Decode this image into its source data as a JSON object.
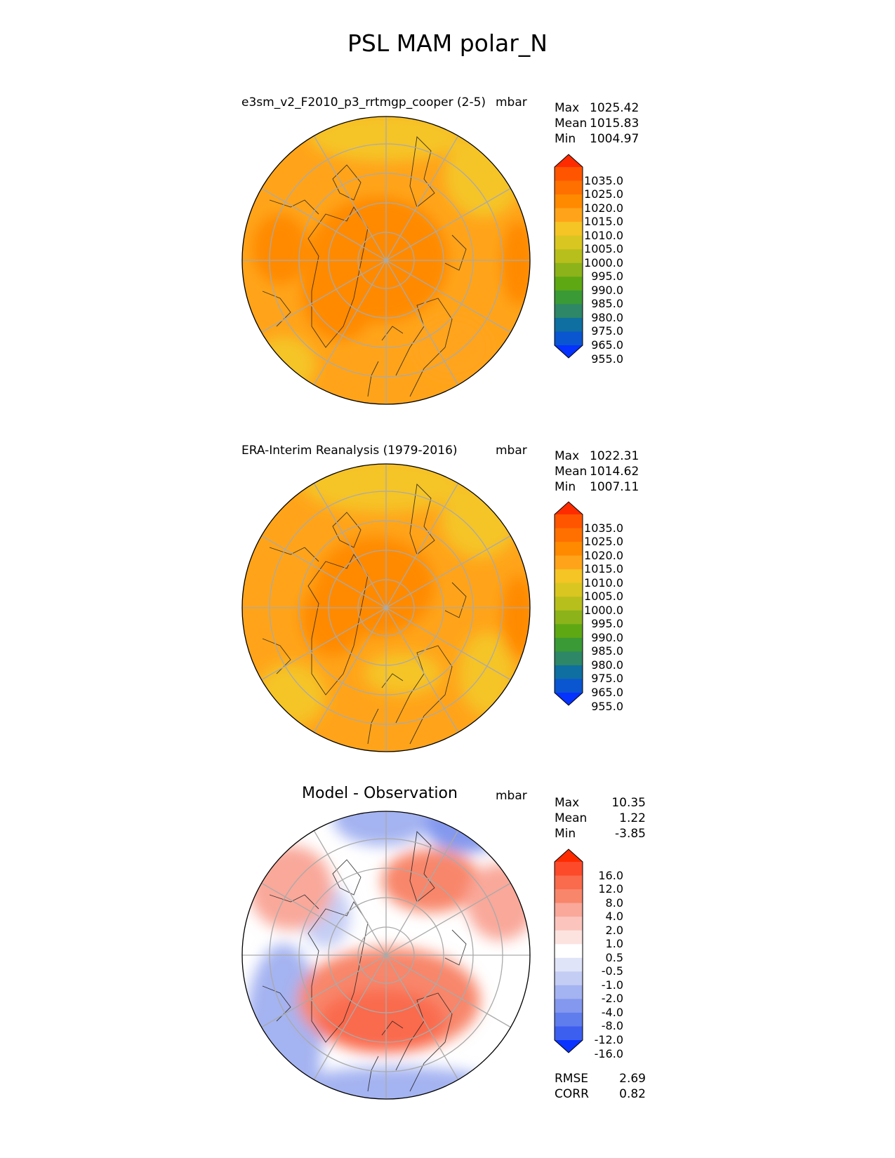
{
  "figure": {
    "title": "PSL MAM polar_N",
    "units": "mbar"
  },
  "panels": [
    {
      "subtitle": "e3sm_v2_F2010_p3_rrtmgp_cooper (2-5)",
      "units": "mbar",
      "stats": [
        {
          "label": "Max",
          "value": "1025.42"
        },
        {
          "label": "Mean",
          "value": "1015.83"
        },
        {
          "label": "Min",
          "value": "1004.97"
        }
      ]
    },
    {
      "subtitle": "ERA-Interim Reanalysis (1979-2016)",
      "units": "mbar",
      "stats": [
        {
          "label": "Max",
          "value": "1022.31"
        },
        {
          "label": "Mean",
          "value": "1014.62"
        },
        {
          "label": "Min",
          "value": "1007.11"
        }
      ]
    },
    {
      "subtitle": "Model - Observation",
      "units": "mbar",
      "stats": [
        {
          "label": "Max",
          "value": "10.35"
        },
        {
          "label": "Mean",
          "value": "1.22"
        },
        {
          "label": "Min",
          "value": "-3.85"
        }
      ],
      "metrics": [
        {
          "label": "RMSE",
          "value": "2.69"
        },
        {
          "label": "CORR",
          "value": "0.82"
        }
      ]
    }
  ],
  "chart_data": [
    {
      "type": "heatmap",
      "projection": "north polar stereographic",
      "title": "e3sm_v2_F2010_p3_rrtmgp_cooper (2-5)",
      "variable": "PSL",
      "season": "MAM",
      "units": "mbar",
      "colorbar": {
        "ticks": [
          "1035.0",
          "1025.0",
          "1020.0",
          "1015.0",
          "1010.0",
          "1005.0",
          "1000.0",
          "995.0",
          "990.0",
          "985.0",
          "980.0",
          "975.0",
          "965.0",
          "955.0"
        ],
        "colors": [
          "#ff2b00",
          "#ff5500",
          "#ff7000",
          "#ff8a00",
          "#ffa41a",
          "#f5c425",
          "#d9c621",
          "#b7bf1d",
          "#8cb31a",
          "#5ea814",
          "#3a9a36",
          "#2e8766",
          "#0f6fa0",
          "#0a55d0",
          "#0532ff"
        ],
        "extend": "both"
      },
      "field_levels": {
        "typical": 1015,
        "high_center": 1022,
        "low_regions": 1005
      }
    },
    {
      "type": "heatmap",
      "projection": "north polar stereographic",
      "title": "ERA-Interim Reanalysis (1979-2016)",
      "variable": "PSL",
      "season": "MAM",
      "units": "mbar",
      "colorbar": {
        "ticks": [
          "1035.0",
          "1025.0",
          "1020.0",
          "1015.0",
          "1010.0",
          "1005.0",
          "1000.0",
          "995.0",
          "990.0",
          "985.0",
          "980.0",
          "975.0",
          "965.0",
          "955.0"
        ],
        "colors": [
          "#ff2b00",
          "#ff5500",
          "#ff7000",
          "#ff8a00",
          "#ffa41a",
          "#f5c425",
          "#d9c621",
          "#b7bf1d",
          "#8cb31a",
          "#5ea814",
          "#3a9a36",
          "#2e8766",
          "#0f6fa0",
          "#0a55d0",
          "#0532ff"
        ],
        "extend": "both"
      },
      "field_levels": {
        "typical": 1014,
        "high_center": 1020,
        "low_regions": 1008
      }
    },
    {
      "type": "heatmap",
      "projection": "north polar stereographic",
      "title": "Model - Observation",
      "variable": "PSL",
      "season": "MAM",
      "units": "mbar",
      "colorbar": {
        "ticks": [
          "16.0",
          "12.0",
          "8.0",
          "4.0",
          "2.0",
          "1.0",
          "0.5",
          "-0.5",
          "-1.0",
          "-2.0",
          "-4.0",
          "-8.0",
          "-12.0",
          "-16.0"
        ],
        "colors": [
          "#ff2b00",
          "#fc4a2b",
          "#fa6a4d",
          "#f8866b",
          "#f9a89a",
          "#fbc5bd",
          "#fde3df",
          "#ffffff",
          "#dfe4f8",
          "#c4cdf4",
          "#a4b3f1",
          "#8398ee",
          "#607ded",
          "#3d5ff0",
          "#0a33ff"
        ],
        "extend": "both"
      },
      "metrics": {
        "RMSE": 2.69,
        "CORR": 0.82
      }
    }
  ]
}
